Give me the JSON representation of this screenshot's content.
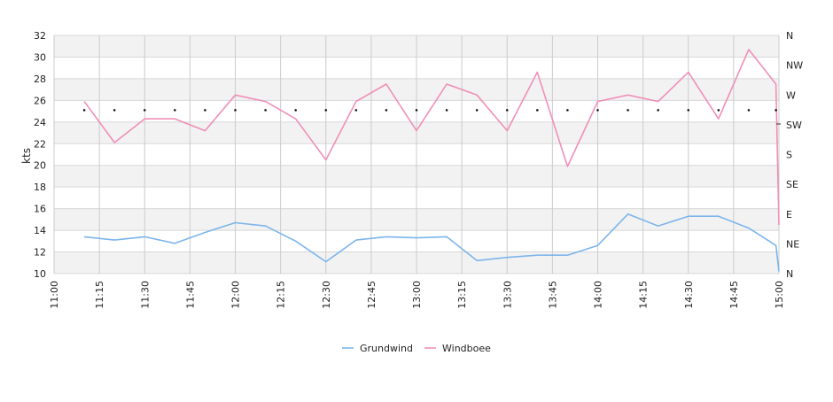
{
  "chart_data": {
    "type": "line",
    "ylabel": "kts",
    "ylim": [
      10,
      32
    ],
    "y_ticks": [
      "10",
      "12",
      "14",
      "16",
      "18",
      "20",
      "22",
      "24",
      "26",
      "28",
      "30",
      "32"
    ],
    "x_ticks": [
      "11:00",
      "11:15",
      "11:30",
      "11:45",
      "12:00",
      "12:15",
      "12:30",
      "12:45",
      "13:00",
      "13:15",
      "13:30",
      "13:45",
      "14:00",
      "14:15",
      "14:30",
      "14:45",
      "15:00"
    ],
    "x_range": [
      "11:00",
      "15:00"
    ],
    "right_axis_ticks": [
      "N",
      "NE",
      "E",
      "SE",
      "S",
      "SW",
      "W",
      "NW",
      "N"
    ],
    "grid": true,
    "legend_position": "bottom-center",
    "x": [
      "11:10",
      "11:20",
      "11:30",
      "11:40",
      "11:50",
      "12:00",
      "12:10",
      "12:20",
      "12:30",
      "12:40",
      "12:50",
      "13:00",
      "13:10",
      "13:20",
      "13:30",
      "13:40",
      "13:50",
      "14:00",
      "14:10",
      "14:20",
      "14:30",
      "14:40",
      "14:50",
      "14:59",
      "15:00"
    ],
    "series": [
      {
        "name": "Grundwind",
        "color": "#7cb5ec",
        "values": [
          13.4,
          13.1,
          13.4,
          12.8,
          13.8,
          14.7,
          14.4,
          13.0,
          11.1,
          13.1,
          13.4,
          13.3,
          13.4,
          11.2,
          11.5,
          11.7,
          11.7,
          12.6,
          15.5,
          14.4,
          15.3,
          15.3,
          14.2,
          12.6,
          10.2
        ]
      },
      {
        "name": "Windboee",
        "color": "#f08fb8",
        "values": [
          25.9,
          22.1,
          24.3,
          24.3,
          23.2,
          26.5,
          25.9,
          24.3,
          20.5,
          25.9,
          27.5,
          23.2,
          27.5,
          26.5,
          23.2,
          28.6,
          19.9,
          25.9,
          26.5,
          25.9,
          28.6,
          24.3,
          30.7,
          27.5,
          14.5
        ]
      }
    ],
    "direction_marker_y": 25.1
  }
}
